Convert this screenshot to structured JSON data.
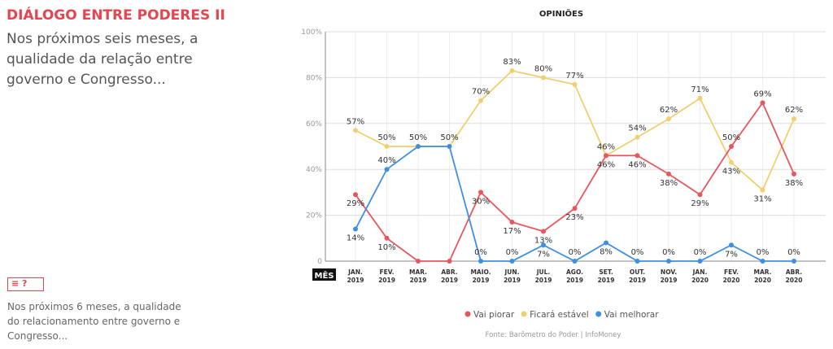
{
  "header": {
    "title": "DIÁLOGO ENTRE PODERES II",
    "subtitle": "Nos próximos seis meses, a qualidade da relação entre governo e Congresso..."
  },
  "note": {
    "icon": "text-question-icon",
    "icon_text": "≡ ?",
    "text": "Nos próximos 6 meses, a qualidade do relacionamento entre governo e Congresso..."
  },
  "chart_data": {
    "type": "line",
    "title": "OPINIÕES",
    "xlabel": "MÊS",
    "categories": [
      [
        "JAN.",
        "2019"
      ],
      [
        "FEV.",
        "2019"
      ],
      [
        "MAR.",
        "2019"
      ],
      [
        "ABR.",
        "2019"
      ],
      [
        "MAIO.",
        "2019"
      ],
      [
        "JUN.",
        "2019"
      ],
      [
        "JUL.",
        "2019"
      ],
      [
        "AGO.",
        "2019"
      ],
      [
        "SET.",
        "2019"
      ],
      [
        "OUT.",
        "2019"
      ],
      [
        "NOV.",
        "2019"
      ],
      [
        "JAN.",
        "2020"
      ],
      [
        "FEV.",
        "2020"
      ],
      [
        "MAR.",
        "2020"
      ],
      [
        "ABR.",
        "2020"
      ]
    ],
    "yticks": [
      {
        "v": 0,
        "l": "0"
      },
      {
        "v": 20,
        "l": "20%"
      },
      {
        "v": 40,
        "l": "40%"
      },
      {
        "v": 60,
        "l": "60%"
      },
      {
        "v": 80,
        "l": "80%"
      },
      {
        "v": 100,
        "l": "100%"
      }
    ],
    "ylim": [
      0,
      100
    ],
    "series": [
      {
        "name": "Vai piorar",
        "color": "#e8565e",
        "values": [
          29,
          10,
          0,
          0,
          30,
          17,
          13,
          23,
          46,
          46,
          38,
          29,
          50,
          69,
          38
        ]
      },
      {
        "name": "Ficará estável",
        "color": "#f1cf70",
        "values": [
          57,
          50,
          50,
          50,
          70,
          83,
          80,
          77,
          46,
          54,
          62,
          71,
          43,
          31,
          62
        ]
      },
      {
        "name": "Vai melhorar",
        "color": "#3d8fe0",
        "values": [
          14,
          40,
          50,
          50,
          0,
          0,
          7,
          0,
          8,
          0,
          0,
          0,
          7,
          0,
          0
        ]
      }
    ],
    "legend": "bottom-center",
    "source": "Fonte: Barômetro do Poder | InfoMoney"
  }
}
